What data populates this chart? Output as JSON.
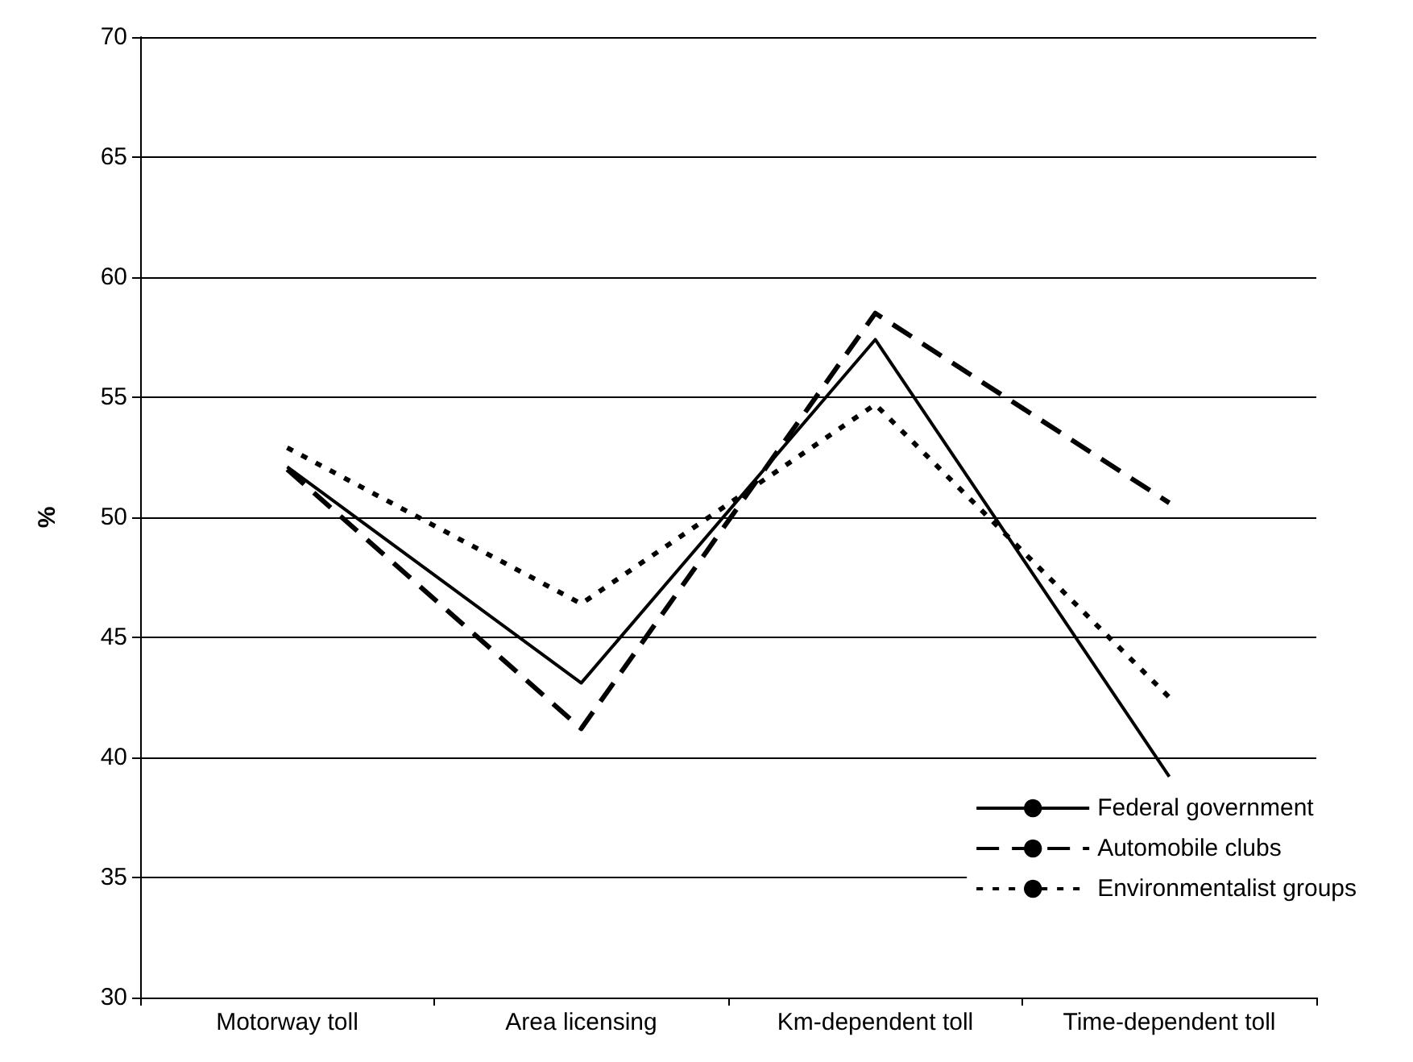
{
  "chart_data": {
    "type": "line",
    "ylabel": "%",
    "categories": [
      "Motorway toll",
      "Area licensing",
      "Km-dependent toll",
      "Time-dependent toll"
    ],
    "series": [
      {
        "name": "Federal government",
        "color": "#000000",
        "line_style": "solid",
        "values": [
          52.1,
          43.1,
          57.4,
          39.2
        ]
      },
      {
        "name": "Automobile clubs",
        "color": "#000000",
        "line_style": "dashed",
        "values": [
          52.0,
          41.2,
          58.5,
          50.6
        ]
      },
      {
        "name": "Environmentalist groups",
        "color": "#000000",
        "line_style": "dotted",
        "values": [
          52.9,
          46.4,
          54.7,
          42.5
        ]
      }
    ],
    "ylim": [
      30,
      70
    ],
    "yticks": [
      30,
      35,
      40,
      45,
      50,
      55,
      60,
      65,
      70
    ],
    "grid": "y",
    "legend": "bottom right",
    "marker": "none"
  }
}
